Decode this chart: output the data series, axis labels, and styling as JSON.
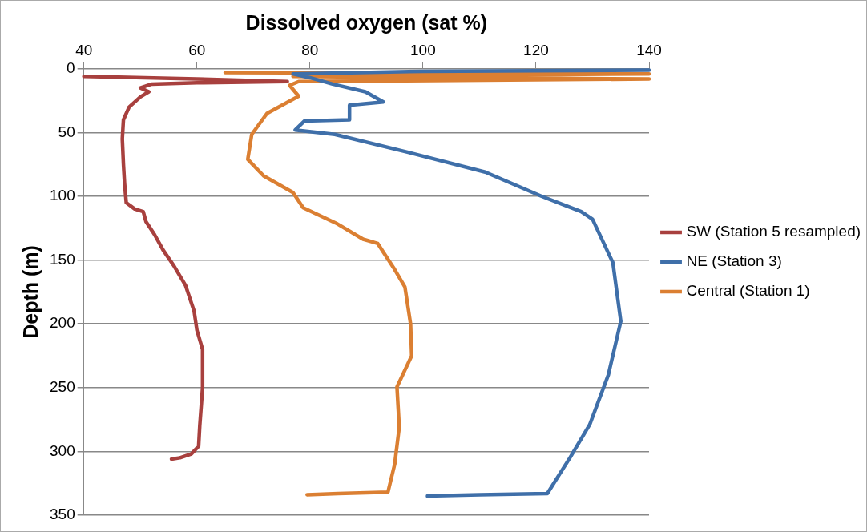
{
  "chart_data": {
    "type": "line",
    "xlabel": "Dissolved oxygen (sat %)",
    "ylabel": "Depth (m)",
    "xlim": [
      40,
      140
    ],
    "xticks": [
      40,
      60,
      80,
      100,
      120,
      140
    ],
    "ylim": [
      350,
      0
    ],
    "yticks": [
      0,
      50,
      100,
      150,
      200,
      250,
      300,
      350
    ],
    "grid": "y",
    "legend": "right",
    "marker": "none",
    "line_style": "solid",
    "series": [
      {
        "name": "SW (Station 5 resampled)",
        "color": "#a8403e",
        "x": [
          40,
          60,
          76,
          60,
          52,
          50,
          51.5,
          50,
          48,
          47,
          46.8,
          47,
          47.2,
          47.5,
          49,
          50.5,
          51,
          52.5,
          54,
          56,
          58,
          59.5,
          60,
          61,
          61,
          60.5,
          60.3,
          59,
          57,
          55.5
        ],
        "values": [
          6,
          8,
          10,
          11,
          12,
          15,
          18,
          22,
          30,
          40,
          55,
          75,
          90,
          105,
          110,
          112,
          120,
          130,
          142,
          155,
          170,
          190,
          205,
          220,
          250,
          280,
          296,
          302,
          305,
          306
        ]
      },
      {
        "name": "NE (Station 3)",
        "color": "#3f6fa9",
        "x": [
          140,
          100,
          77,
          80,
          84,
          89.8,
          93,
          87,
          87,
          79,
          77.4,
          84.4,
          97.8,
          111,
          121,
          128,
          130,
          133.6,
          135,
          132.8,
          129.5,
          126,
          122,
          110,
          100.8
        ],
        "values": [
          1,
          2,
          4,
          7,
          12,
          18,
          26,
          28.5,
          40,
          41,
          48,
          51.5,
          66,
          81,
          100,
          112,
          118,
          152,
          198,
          240,
          279,
          305,
          333,
          334,
          335
        ]
      },
      {
        "name": "Central (Station 1)",
        "color": "#db7f32",
        "x": [
          65,
          140,
          77,
          140,
          78,
          76.4,
          78,
          72.4,
          69.7,
          69,
          71.8,
          77,
          78.8,
          84.6,
          89.4,
          92,
          94.8,
          96.8,
          97.8,
          98,
          95.4,
          95.8,
          95,
          93.8,
          85,
          79.5
        ],
        "values": [
          3,
          4,
          6,
          8,
          10,
          13,
          21.5,
          35,
          51.5,
          71,
          84,
          97,
          109,
          121,
          133.6,
          137,
          156,
          171,
          200,
          225,
          249.5,
          281,
          310,
          332,
          333,
          334
        ]
      }
    ]
  }
}
